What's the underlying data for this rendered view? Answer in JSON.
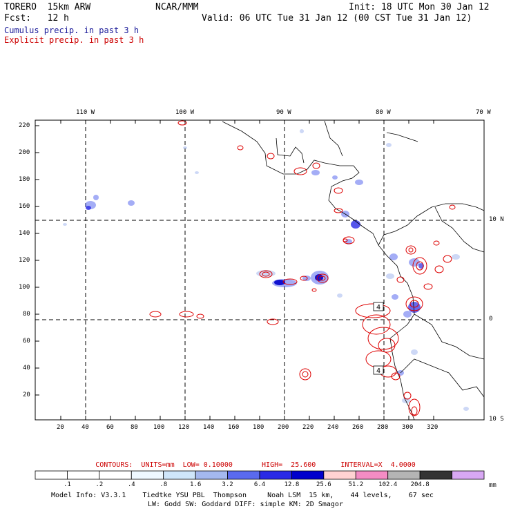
{
  "header": {
    "model": "TORERO  15km ARW",
    "org": "NCAR/MMM",
    "init": "Init: 18 UTC Mon 30 Jan 12",
    "fcst": "Fcst:   12 h",
    "valid": "Valid: 06 UTC Tue 31 Jan 12 (00 CST Tue 31 Jan 12)",
    "line1": "Cumulus precip. in past 3 h",
    "line2": "Explicit precip. in past 3 h",
    "line1_color": "#1a1a99",
    "line2_color": "#cc0000"
  },
  "map": {
    "top_labels": [
      "110 W",
      "100 W",
      "90 W",
      "80 W",
      "70 W"
    ],
    "right_labels": [
      "10 N",
      "0",
      "10 S"
    ],
    "y_ticks": [
      "220",
      "200",
      "180",
      "160",
      "140",
      "120",
      "100",
      "80",
      "60",
      "40",
      "20"
    ],
    "x_ticks": [
      "20",
      "40",
      "60",
      "80",
      "100",
      "120",
      "140",
      "160",
      "180",
      "200",
      "220",
      "240",
      "260",
      "280",
      "300",
      "320"
    ],
    "contour_labels": [
      "4",
      "4"
    ]
  },
  "contours": {
    "text": "CONTOURS:  UNITS=mm  LOW= 0.10000       HIGH=  25.600      INTERVAL=X  4.0000"
  },
  "legend": {
    "labels": [
      ".1",
      ".2",
      ".4",
      ".8",
      "1.6",
      "3.2",
      "6.4",
      "12.8",
      "25.6",
      "51.2",
      "102.4",
      "204.8"
    ],
    "unit": "mm",
    "colors": [
      "#ffffff",
      "#ffffff",
      "#ffffff",
      "#eef8ff",
      "#cfe6fa",
      "#a4b8ee",
      "#5a6aee",
      "#2a2ae6",
      "#0000cc",
      "#ffd2d2",
      "#f48cc4",
      "#b4b4b4",
      "#333333",
      "#d8a8f4"
    ]
  },
  "footer": {
    "line1": "Model Info: V3.3.1    Tiedtke YSU PBL  Thompson     Noah LSM  15 km,    44 levels,    67 sec",
    "line2": "LW: Godd SW: Goddard DIFF: simple KM: 2D Smagor"
  }
}
